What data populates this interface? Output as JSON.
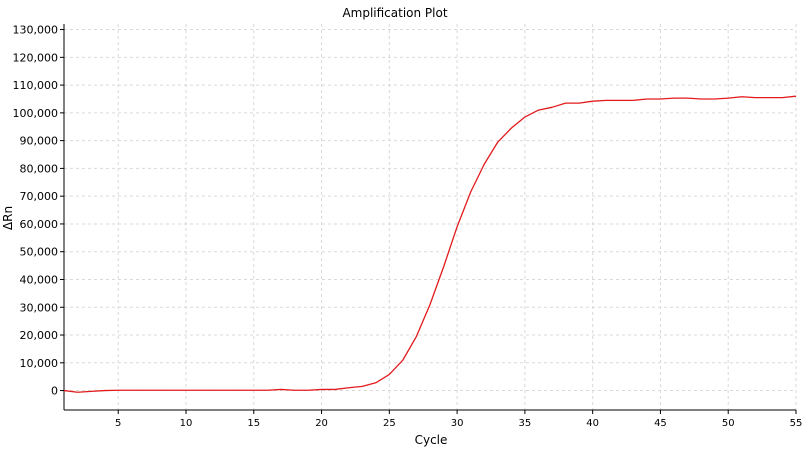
{
  "chart_data": {
    "type": "line",
    "title": "Amplification Plot",
    "xlabel": "Cycle",
    "ylabel": "ΔRn",
    "xlim": [
      1,
      55
    ],
    "ylim": [
      -7000,
      132000
    ],
    "grid": true,
    "x_ticks": [
      5,
      10,
      15,
      20,
      25,
      30,
      35,
      40,
      45,
      50,
      55
    ],
    "x_tick_labels": [
      "5",
      "10",
      "15",
      "20",
      "25",
      "30",
      "35",
      "40",
      "45",
      "50",
      "55"
    ],
    "y_ticks": [
      0,
      10000,
      20000,
      30000,
      40000,
      50000,
      60000,
      70000,
      80000,
      90000,
      100000,
      110000,
      120000,
      130000
    ],
    "y_tick_labels": [
      "0",
      "10,000",
      "20,000",
      "30,000",
      "40,000",
      "50,000",
      "60,000",
      "70,000",
      "80,000",
      "90,000",
      "100,000",
      "110,000",
      "120,000",
      "130,000"
    ],
    "series": [
      {
        "color": "#e31a1c",
        "x": [
          1,
          2,
          3,
          4,
          5,
          6,
          7,
          8,
          9,
          10,
          11,
          12,
          13,
          14,
          15,
          16,
          17,
          18,
          19,
          20,
          21,
          22,
          23,
          24,
          25,
          26,
          27,
          28,
          29,
          30,
          31,
          32,
          33,
          34,
          35,
          36,
          37,
          38,
          39,
          40,
          41,
          42,
          43,
          44,
          45,
          46,
          47,
          48,
          49,
          50,
          51,
          52,
          53,
          54,
          55
        ],
        "y": [
          0,
          -600,
          -300,
          0,
          100,
          100,
          100,
          100,
          100,
          100,
          100,
          100,
          100,
          100,
          100,
          100,
          400,
          100,
          100,
          400,
          400,
          1000,
          1500,
          2800,
          5800,
          11000,
          19500,
          31000,
          44500,
          59000,
          71500,
          81500,
          89500,
          94500,
          98500,
          101000,
          102000,
          103500,
          103500,
          104200,
          104500,
          104500,
          104500,
          105000,
          105000,
          105300,
          105300,
          105000,
          105000,
          105300,
          105800,
          105500,
          105500,
          105500,
          106000
        ]
      }
    ]
  }
}
